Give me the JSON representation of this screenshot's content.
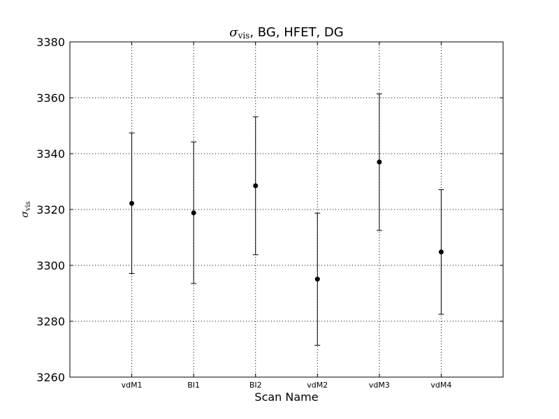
{
  "chart_data": {
    "type": "scatter",
    "title": {
      "symbol": "σ",
      "subscript": "vis",
      "rest": ", BG, HFET, DG"
    },
    "xlabel": "Scan Name",
    "ylabel": {
      "symbol": "σ",
      "subscript": "vis"
    },
    "categories": [
      "vdM1",
      "BI1",
      "BI2",
      "vdM2",
      "vdM3",
      "vdM4"
    ],
    "values": [
      3322.2,
      3318.8,
      3328.5,
      3295.1,
      3337.0,
      3304.8
    ],
    "error_low": [
      3297.1,
      3293.5,
      3303.8,
      3271.4,
      3312.5,
      3282.5
    ],
    "error_high": [
      3347.4,
      3344.2,
      3353.2,
      3318.7,
      3361.4,
      3327.1
    ],
    "ylim": [
      3260,
      3380
    ],
    "yticks": [
      3260,
      3280,
      3300,
      3320,
      3340,
      3360,
      3380
    ],
    "grid": true,
    "marker_color": "#000000"
  }
}
